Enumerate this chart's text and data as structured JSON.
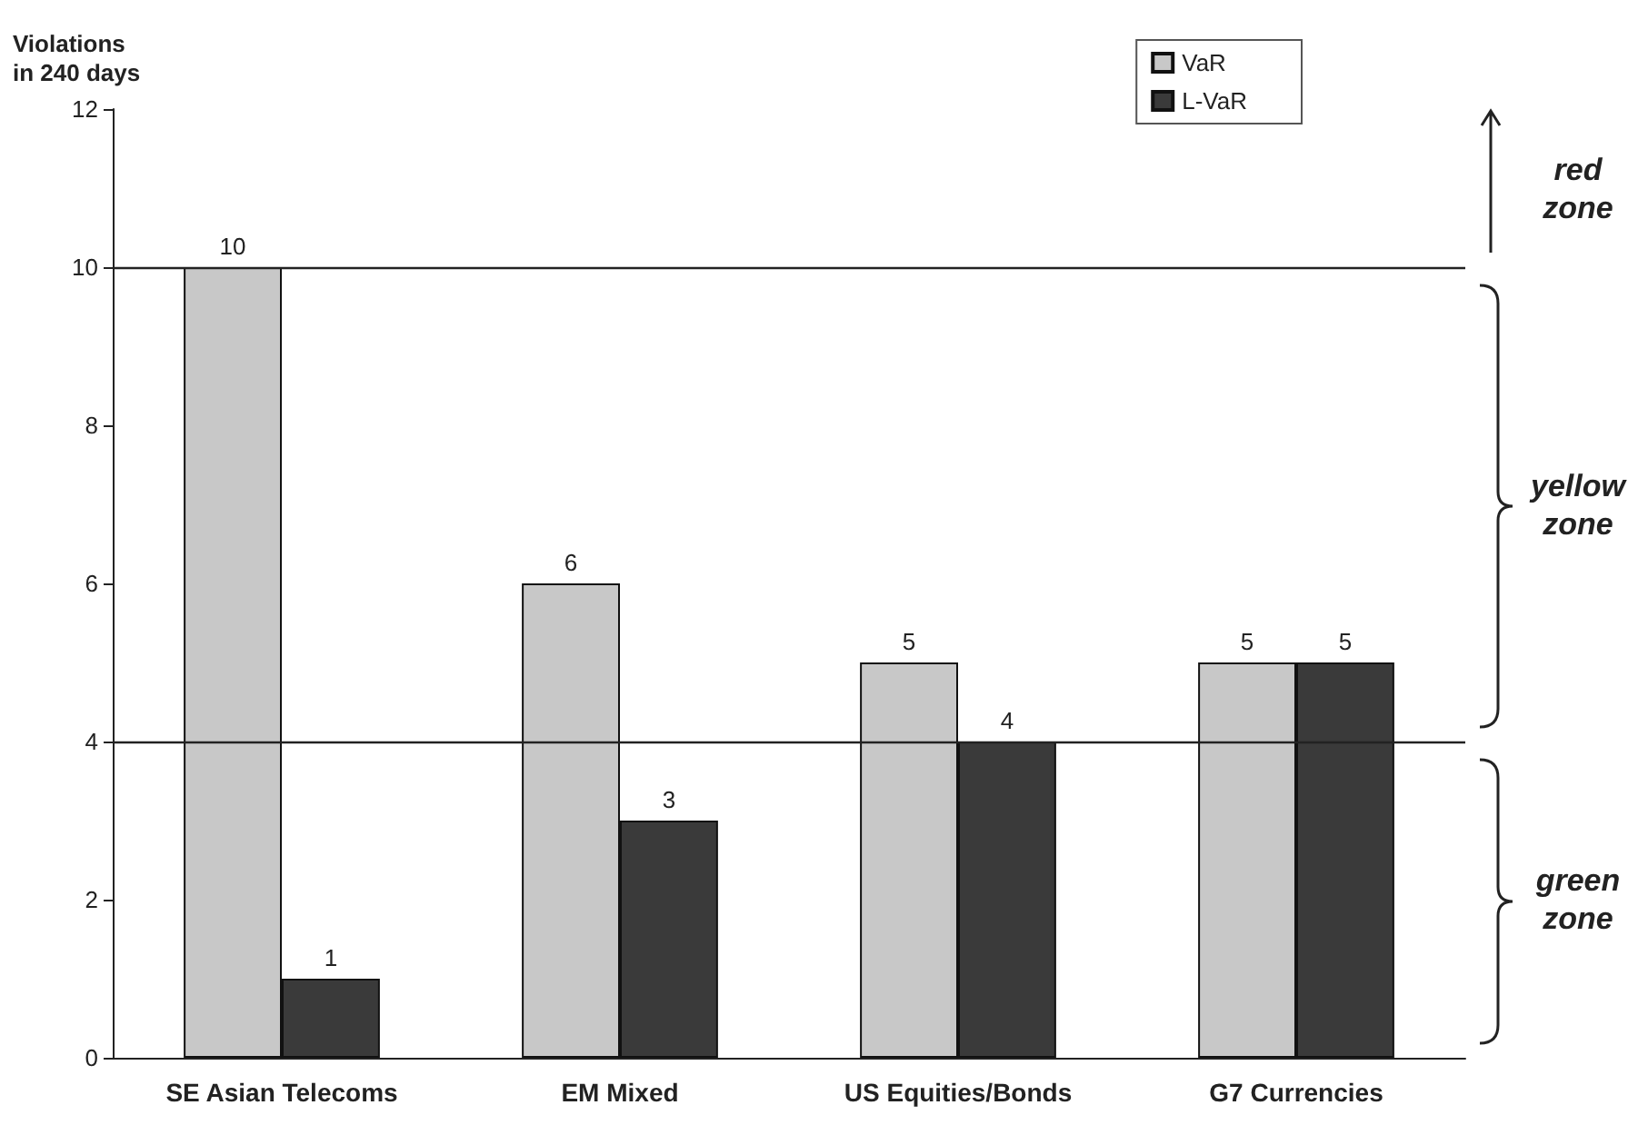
{
  "chart_data": {
    "type": "bar",
    "ylabel": "Violations\nin 240 days",
    "categories": [
      "SE Asian Telecoms",
      "EM Mixed",
      "US Equities/Bonds",
      "G7 Currencies"
    ],
    "series": [
      {
        "name": "VaR",
        "color": "#c8c8c8",
        "values": [
          10,
          6,
          5,
          5
        ]
      },
      {
        "name": "L-VaR",
        "color": "#3a3a3a",
        "values": [
          1,
          3,
          4,
          5
        ]
      }
    ],
    "ylim": [
      0,
      12
    ],
    "yticks": [
      0,
      2,
      4,
      6,
      8,
      10,
      12
    ],
    "data_labels": true,
    "legend": "top right",
    "ref_lines": [
      {
        "axis": "y",
        "value": 10
      },
      {
        "axis": "y",
        "value": 4
      }
    ],
    "annotations": [
      "red zone",
      "yellow zone",
      "green zone"
    ]
  }
}
